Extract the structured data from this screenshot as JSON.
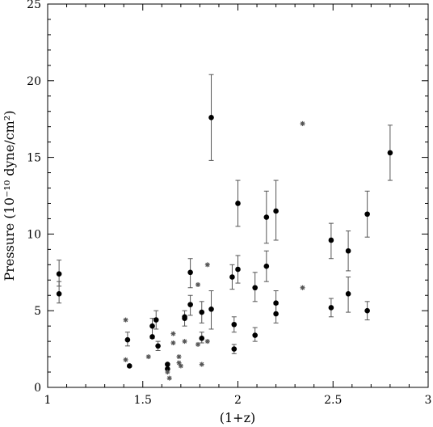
{
  "chart_data": {
    "type": "scatter",
    "title": "",
    "xlabel": "(1+z)",
    "ylabel": "Pressure (10⁻¹⁰ dyne/cm²)",
    "xlim": [
      1,
      3
    ],
    "ylim": [
      0,
      25
    ],
    "x_ticks": [
      "1",
      "1.5",
      "2",
      "2.5",
      "3"
    ],
    "y_ticks": [
      "0",
      "5",
      "10",
      "15",
      "20",
      "25"
    ],
    "grid": false,
    "legend": "none",
    "series": [
      {
        "marker": "filled-circle",
        "color": "#000000",
        "points": [
          {
            "x": 1.06,
            "y": 7.4,
            "lo": 6.6,
            "hi": 8.3
          },
          {
            "x": 1.06,
            "y": 6.1,
            "lo": 5.5,
            "hi": 6.9
          },
          {
            "x": 1.42,
            "y": 3.1,
            "lo": 2.7,
            "hi": 3.6
          },
          {
            "x": 1.43,
            "y": 1.4
          },
          {
            "x": 1.55,
            "y": 4.0,
            "lo": 3.2,
            "hi": 4.5
          },
          {
            "x": 1.55,
            "y": 3.3
          },
          {
            "x": 1.57,
            "y": 4.4,
            "lo": 3.8,
            "hi": 5.0
          },
          {
            "x": 1.58,
            "y": 2.7,
            "lo": 2.4,
            "hi": 3.0
          },
          {
            "x": 1.63,
            "y": 1.5
          },
          {
            "x": 1.63,
            "y": 1.2
          },
          {
            "x": 1.72,
            "y": 4.6,
            "lo": 4.0,
            "hi": 5.0
          },
          {
            "x": 1.72,
            "y": 4.5
          },
          {
            "x": 1.75,
            "y": 7.5,
            "lo": 6.5,
            "hi": 8.4
          },
          {
            "x": 1.75,
            "y": 5.4,
            "lo": 4.7,
            "hi": 6.0
          },
          {
            "x": 1.81,
            "y": 4.9,
            "lo": 4.2,
            "hi": 5.6
          },
          {
            "x": 1.81,
            "y": 3.2,
            "lo": 2.9,
            "hi": 3.6
          },
          {
            "x": 1.86,
            "y": 17.6,
            "lo": 14.8,
            "hi": 20.4
          },
          {
            "x": 1.86,
            "y": 5.1,
            "lo": 3.8,
            "hi": 6.3
          },
          {
            "x": 1.97,
            "y": 7.2,
            "lo": 6.4,
            "hi": 8.0
          },
          {
            "x": 1.98,
            "y": 4.1,
            "lo": 3.6,
            "hi": 4.6
          },
          {
            "x": 1.98,
            "y": 2.5,
            "lo": 2.2,
            "hi": 2.8
          },
          {
            "x": 2.0,
            "y": 12.0,
            "lo": 10.5,
            "hi": 13.5
          },
          {
            "x": 2.0,
            "y": 7.7,
            "lo": 6.8,
            "hi": 8.6
          },
          {
            "x": 2.09,
            "y": 6.5,
            "lo": 5.6,
            "hi": 7.5
          },
          {
            "x": 2.09,
            "y": 3.4,
            "lo": 3.0,
            "hi": 3.9
          },
          {
            "x": 2.15,
            "y": 11.1,
            "lo": 9.4,
            "hi": 12.8
          },
          {
            "x": 2.15,
            "y": 7.9,
            "lo": 6.9,
            "hi": 8.9
          },
          {
            "x": 2.2,
            "y": 11.5,
            "lo": 9.6,
            "hi": 13.5
          },
          {
            "x": 2.2,
            "y": 5.5,
            "lo": 4.8,
            "hi": 6.3
          },
          {
            "x": 2.2,
            "y": 4.8,
            "lo": 4.2,
            "hi": 5.4
          },
          {
            "x": 2.49,
            "y": 9.6,
            "lo": 8.4,
            "hi": 10.7
          },
          {
            "x": 2.49,
            "y": 5.2,
            "lo": 4.6,
            "hi": 5.8
          },
          {
            "x": 2.58,
            "y": 8.9,
            "lo": 7.6,
            "hi": 10.2
          },
          {
            "x": 2.58,
            "y": 6.1,
            "lo": 4.9,
            "hi": 7.2
          },
          {
            "x": 2.68,
            "y": 11.3,
            "lo": 9.8,
            "hi": 12.8
          },
          {
            "x": 2.68,
            "y": 5.0,
            "lo": 4.4,
            "hi": 5.6
          },
          {
            "x": 2.8,
            "y": 15.3,
            "lo": 13.5,
            "hi": 17.1
          }
        ]
      },
      {
        "marker": "asterisk",
        "color": "#555555",
        "points": [
          {
            "x": 1.41,
            "y": 4.4
          },
          {
            "x": 1.41,
            "y": 1.8
          },
          {
            "x": 1.53,
            "y": 2.0
          },
          {
            "x": 1.63,
            "y": 1.0
          },
          {
            "x": 1.64,
            "y": 0.6
          },
          {
            "x": 1.66,
            "y": 3.5
          },
          {
            "x": 1.66,
            "y": 2.9
          },
          {
            "x": 1.69,
            "y": 2.0
          },
          {
            "x": 1.69,
            "y": 1.6
          },
          {
            "x": 1.7,
            "y": 1.4
          },
          {
            "x": 1.72,
            "y": 3.0
          },
          {
            "x": 1.79,
            "y": 6.7
          },
          {
            "x": 1.79,
            "y": 2.8
          },
          {
            "x": 1.81,
            "y": 1.5
          },
          {
            "x": 1.84,
            "y": 8.0
          },
          {
            "x": 1.84,
            "y": 3.0
          },
          {
            "x": 2.34,
            "y": 17.2
          },
          {
            "x": 2.34,
            "y": 6.5
          }
        ]
      }
    ]
  }
}
